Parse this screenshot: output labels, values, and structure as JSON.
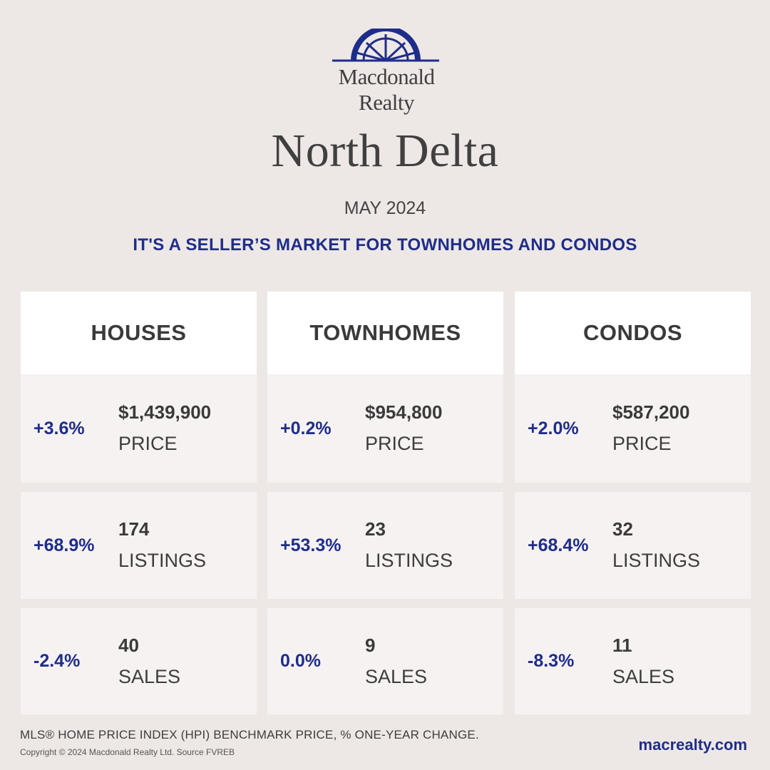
{
  "brand": {
    "name_line1": "Macdonald",
    "name_line2": "Realty",
    "logo_color": "#1f2d8a"
  },
  "title": "North Delta",
  "period": "MAY 2024",
  "headline": "IT'S A SELLER’S MARKET FOR TOWNHOMES AND CONDOS",
  "accent_color": "#1f2d8a",
  "columns": [
    {
      "heading": "HOUSES",
      "rows": [
        {
          "change": "+3.6%",
          "value": "$1,439,900",
          "label": "PRICE"
        },
        {
          "change": "+68.9%",
          "value": "174",
          "label": "LISTINGS"
        },
        {
          "change": "-2.4%",
          "value": "40",
          "label": "SALES"
        }
      ]
    },
    {
      "heading": "TOWNHOMES",
      "rows": [
        {
          "change": "+0.2%",
          "value": "$954,800",
          "label": "PRICE"
        },
        {
          "change": "+53.3%",
          "value": "23",
          "label": "LISTINGS"
        },
        {
          "change": "0.0%",
          "value": "9",
          "label": "SALES"
        }
      ]
    },
    {
      "heading": "CONDOS",
      "rows": [
        {
          "change": "+2.0%",
          "value": "$587,200",
          "label": "PRICE"
        },
        {
          "change": "+68.4%",
          "value": "32",
          "label": "LISTINGS"
        },
        {
          "change": "-8.3%",
          "value": "11",
          "label": "SALES"
        }
      ]
    }
  ],
  "footnote": "MLS® HOME PRICE INDEX (HPI) BENCHMARK PRICE, % ONE-YEAR CHANGE.",
  "copyright": "Copyright © 2024 Macdonald Realty Ltd. Source FVREB",
  "website": "macrealty.com"
}
